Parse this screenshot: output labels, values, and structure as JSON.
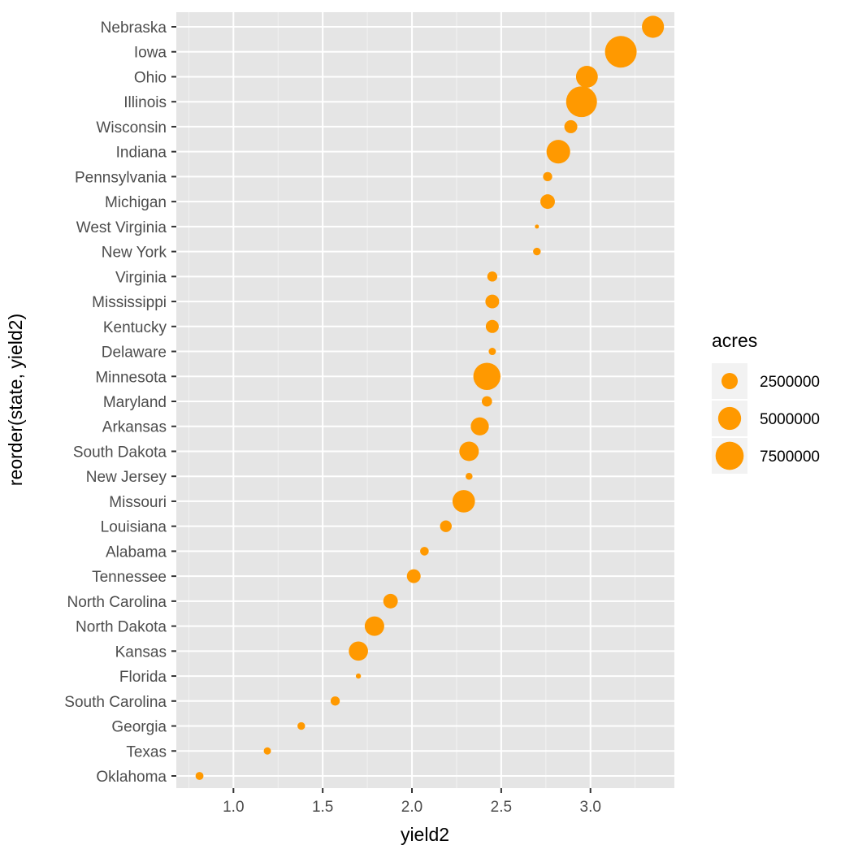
{
  "chart_data": {
    "type": "scatter",
    "xlabel": "yield2",
    "ylabel": "reorder(state, yield2)",
    "xlim": [
      0.68,
      3.47
    ],
    "x_ticks": [
      1.0,
      1.5,
      2.0,
      2.5,
      3.0
    ],
    "x_tick_labels": [
      "1.0",
      "1.5",
      "2.0",
      "2.5",
      "3.0"
    ],
    "y_order_bottom_to_top": [
      "Oklahoma",
      "Texas",
      "Georgia",
      "South Carolina",
      "Florida",
      "Kansas",
      "North Dakota",
      "North Carolina",
      "Tennessee",
      "Alabama",
      "Louisiana",
      "Missouri",
      "New Jersey",
      "South Dakota",
      "Arkansas",
      "Maryland",
      "Minnesota",
      "Delaware",
      "Kentucky",
      "Mississippi",
      "Virginia",
      "New York",
      "West Virginia",
      "Michigan",
      "Pennsylvania",
      "Indiana",
      "Wisconsin",
      "Illinois",
      "Ohio",
      "Iowa",
      "Nebraska"
    ],
    "points": [
      {
        "state": "Oklahoma",
        "yield2": 0.81,
        "acres": 600000
      },
      {
        "state": "Texas",
        "yield2": 1.19,
        "acres": 500000
      },
      {
        "state": "Georgia",
        "yield2": 1.38,
        "acres": 550000
      },
      {
        "state": "South Carolina",
        "yield2": 1.57,
        "acres": 800000
      },
      {
        "state": "Florida",
        "yield2": 1.7,
        "acres": 250000
      },
      {
        "state": "Kansas",
        "yield2": 1.7,
        "acres": 3500000
      },
      {
        "state": "North Dakota",
        "yield2": 1.79,
        "acres": 3600000
      },
      {
        "state": "North Carolina",
        "yield2": 1.88,
        "acres": 2000000
      },
      {
        "state": "Tennessee",
        "yield2": 2.01,
        "acres": 1800000
      },
      {
        "state": "Alabama",
        "yield2": 2.07,
        "acres": 700000
      },
      {
        "state": "Louisiana",
        "yield2": 2.19,
        "acres": 1300000
      },
      {
        "state": "Missouri",
        "yield2": 2.29,
        "acres": 4800000
      },
      {
        "state": "New Jersey",
        "yield2": 2.32,
        "acres": 450000
      },
      {
        "state": "South Dakota",
        "yield2": 2.32,
        "acres": 3600000
      },
      {
        "state": "Arkansas",
        "yield2": 2.38,
        "acres": 3100000
      },
      {
        "state": "Maryland",
        "yield2": 2.42,
        "acres": 1000000
      },
      {
        "state": "Minnesota",
        "yield2": 2.42,
        "acres": 7000000
      },
      {
        "state": "Delaware",
        "yield2": 2.45,
        "acres": 500000
      },
      {
        "state": "Kentucky",
        "yield2": 2.45,
        "acres": 1600000
      },
      {
        "state": "Mississippi",
        "yield2": 2.45,
        "acres": 1800000
      },
      {
        "state": "Virginia",
        "yield2": 2.45,
        "acres": 950000
      },
      {
        "state": "New York",
        "yield2": 2.7,
        "acres": 550000
      },
      {
        "state": "West Virginia",
        "yield2": 2.7,
        "acres": 100000
      },
      {
        "state": "Michigan",
        "yield2": 2.76,
        "acres": 2000000
      },
      {
        "state": "Pennsylvania",
        "yield2": 2.76,
        "acres": 800000
      },
      {
        "state": "Indiana",
        "yield2": 2.82,
        "acres": 5300000
      },
      {
        "state": "Wisconsin",
        "yield2": 2.89,
        "acres": 1600000
      },
      {
        "state": "Illinois",
        "yield2": 2.95,
        "acres": 9000000
      },
      {
        "state": "Ohio",
        "yield2": 2.98,
        "acres": 4500000
      },
      {
        "state": "Iowa",
        "yield2": 3.17,
        "acres": 9500000
      },
      {
        "state": "Nebraska",
        "yield2": 3.35,
        "acres": 4600000
      }
    ],
    "size_legend": {
      "title": "acres",
      "entries": [
        {
          "label": "2500000",
          "value": 2500000
        },
        {
          "label": "5000000",
          "value": 5000000
        },
        {
          "label": "7500000",
          "value": 7500000
        }
      ]
    },
    "point_color": "#ff9900",
    "panel_background": "#e5e5e5",
    "grid": true
  }
}
